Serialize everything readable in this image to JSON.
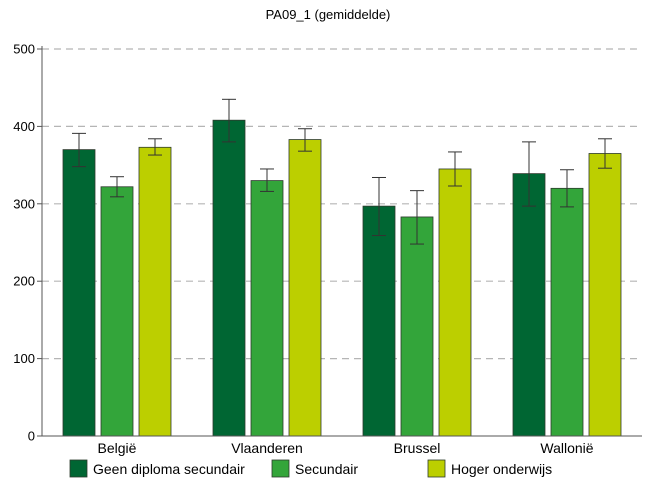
{
  "chart_data": {
    "type": "bar",
    "title": "PA09_1 (gemiddelde)",
    "xlabel": "",
    "ylabel": "",
    "ylim": [
      0,
      500
    ],
    "yticks": [
      0,
      100,
      200,
      300,
      400,
      500
    ],
    "grid": "horizontal-dashed",
    "legend_position": "bottom",
    "categories": [
      "België",
      "Vlaanderen",
      "Brussel",
      "Wallonië"
    ],
    "series": [
      {
        "name": "Geen diploma secundair",
        "color": "#006633",
        "values": [
          370,
          408,
          297,
          339
        ],
        "error_low": [
          348,
          380,
          259,
          297
        ],
        "error_high": [
          391,
          435,
          334,
          380
        ]
      },
      {
        "name": "Secundair",
        "color": "#33a53a",
        "values": [
          322,
          330,
          283,
          320
        ],
        "error_low": [
          309,
          316,
          248,
          296
        ],
        "error_high": [
          335,
          345,
          317,
          344
        ]
      },
      {
        "name": "Hoger onderwijs",
        "color": "#bccf00",
        "values": [
          373,
          383,
          345,
          365
        ],
        "error_low": [
          363,
          368,
          323,
          346
        ],
        "error_high": [
          384,
          397,
          367,
          384
        ]
      }
    ]
  }
}
